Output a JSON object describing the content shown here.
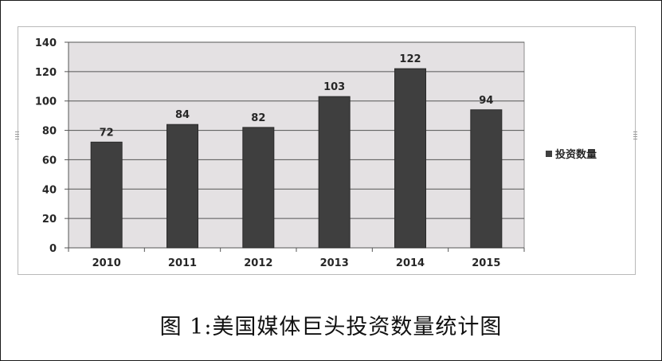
{
  "chart_data": {
    "type": "bar",
    "categories": [
      "2010",
      "2011",
      "2012",
      "2013",
      "2014",
      "2015"
    ],
    "series": [
      {
        "name": "投资数量",
        "values": [
          72,
          84,
          82,
          103,
          122,
          94
        ],
        "color": "#3f3f3f"
      }
    ],
    "data_labels": [
      "72",
      "84",
      "82",
      "103",
      "122",
      "94"
    ],
    "yticks": [
      "0",
      "20",
      "40",
      "60",
      "80",
      "100",
      "120",
      "140"
    ],
    "ylim": [
      0,
      140
    ],
    "grid": true,
    "legend_position": "right",
    "plot_background": "#e4e1e3"
  },
  "legend": {
    "label": "投资数量"
  },
  "caption": "图 1:美国媒体巨头投资数量统计图"
}
